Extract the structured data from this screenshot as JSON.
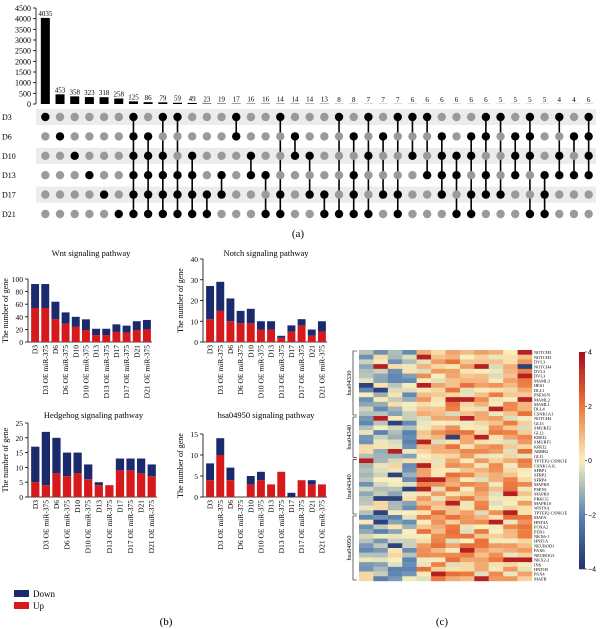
{
  "panel_labels": {
    "a": "(a)",
    "b": "(b)",
    "c": "(c)"
  },
  "colors": {
    "down": "#1a2a6c",
    "up": "#d7191c",
    "upset_bar": "#000000",
    "dot_off": "#9a9a9a",
    "dot_on": "#000000",
    "band": "#ececec"
  },
  "chart_data": [
    {
      "type": "upset",
      "sets": [
        "D3",
        "D6",
        "D10",
        "D13",
        "D17",
        "D21"
      ],
      "yticks": [
        "0",
        "500",
        "1000",
        "1500",
        "2000",
        "2500",
        "3000",
        "3500",
        "4000",
        "4500"
      ],
      "values": [
        4035,
        453,
        358,
        323,
        318,
        258,
        125,
        86,
        79,
        59,
        49,
        23,
        19,
        17,
        16,
        16,
        14,
        14,
        14,
        13,
        8,
        8,
        7,
        7,
        7,
        6,
        6,
        6,
        6,
        6,
        6,
        5,
        5,
        5,
        5,
        4,
        4,
        6
      ],
      "value_labels": [
        "4035",
        "453",
        "358",
        "323",
        "318",
        "258",
        "125",
        "86",
        "79",
        "59",
        "49",
        "23",
        "19",
        "17",
        "16",
        "16",
        "14",
        "14",
        "14",
        "13",
        "8",
        "8",
        "7",
        "7",
        "7",
        "6",
        "6",
        "6",
        "6",
        "6",
        "6",
        "5",
        "5",
        "5",
        "5",
        "4",
        "4",
        "6"
      ],
      "membership": [
        [
          0
        ],
        [
          1
        ],
        [
          2
        ],
        [
          3
        ],
        [
          4
        ],
        [
          5
        ],
        [
          0,
          1,
          2,
          3,
          4,
          5
        ],
        [
          1,
          2,
          3,
          4,
          5
        ],
        [
          0,
          2,
          3,
          4,
          5
        ],
        [
          0,
          3,
          4,
          5
        ],
        [
          2,
          3,
          4,
          5
        ],
        [
          4,
          5
        ],
        [
          3,
          4
        ],
        [
          0,
          1
        ],
        [
          2,
          3
        ],
        [
          3,
          5
        ],
        [
          0,
          4,
          5
        ],
        [
          1,
          2
        ],
        [
          2,
          4
        ],
        [
          4,
          5
        ],
        [
          0,
          5
        ],
        [
          1,
          3,
          4,
          5
        ],
        [
          0,
          2,
          5
        ],
        [
          1,
          4
        ],
        [
          0,
          4,
          5
        ],
        [
          0,
          2
        ],
        [
          0,
          3
        ],
        [
          1,
          2,
          3,
          4
        ],
        [
          2,
          3,
          5
        ],
        [
          1,
          2,
          4,
          5
        ],
        [
          0,
          1,
          3,
          4
        ],
        [
          0,
          4
        ],
        [
          1,
          2,
          3
        ],
        [
          0,
          1,
          2,
          5
        ],
        [
          3,
          4,
          5
        ],
        [
          0,
          2,
          3
        ],
        [
          1,
          3
        ],
        [
          0,
          1,
          2,
          3
        ]
      ]
    },
    {
      "type": "bar",
      "title": "Wnt signaling pathway",
      "ylabel": "The number of gene",
      "yticks": [
        "0",
        "20",
        "40",
        "60",
        "80",
        "100"
      ],
      "ylim": [
        0,
        100
      ],
      "categories": [
        "D3",
        "D3 OE miR-375",
        "D6",
        "D6 OE miR-375",
        "D10",
        "D10 OE miR-375",
        "D13",
        "D13 OE miR-375",
        "D17",
        "D17 OE miR-375",
        "D21",
        "D21 OE miR-375"
      ],
      "series": [
        {
          "name": "Down",
          "values": [
            38,
            38,
            28,
            18,
            16,
            17,
            10,
            10,
            12,
            11,
            14,
            15
          ]
        },
        {
          "name": "Up",
          "values": [
            54,
            54,
            36,
            29,
            24,
            19,
            11,
            11,
            16,
            15,
            19,
            20
          ]
        }
      ]
    },
    {
      "type": "bar",
      "title": "Notch signaling pathway",
      "ylabel": "The number of gene",
      "yticks": [
        "0",
        "10",
        "20",
        "30",
        "40"
      ],
      "ylim": [
        0,
        40
      ],
      "categories": [
        "D3",
        "D3 OE miR-375",
        "D6",
        "D6 OE miR-375",
        "D10",
        "D10 OE miR-375",
        "D13",
        "D13 OE miR-375",
        "D17",
        "D17 OE miR-375",
        "D21",
        "D21 OE miR-375"
      ],
      "series": [
        {
          "name": "Down",
          "values": [
            16,
            14,
            11,
            6,
            7,
            4,
            4,
            1,
            3,
            3,
            3,
            5
          ]
        },
        {
          "name": "Up",
          "values": [
            11,
            15,
            10,
            9,
            9,
            6,
            6,
            2,
            5,
            8,
            3,
            5
          ]
        }
      ]
    },
    {
      "type": "bar",
      "title": "Hedgehog signaling pathway",
      "ylabel": "The number of gene",
      "yticks": [
        "0",
        "5",
        "10",
        "15",
        "20",
        "25"
      ],
      "ylim": [
        0,
        25
      ],
      "categories": [
        "D3",
        "D3 OE miR-375",
        "D6",
        "D6 OE miR-375",
        "D10",
        "D10 OE miR-375",
        "D13",
        "D13 OE miR-375",
        "D17",
        "D17 OE miR-375",
        "D21",
        "D21 OE miR-375"
      ],
      "series": [
        {
          "name": "Down",
          "values": [
            12,
            18,
            12,
            8,
            7,
            5,
            1,
            0,
            4,
            4,
            5,
            4
          ]
        },
        {
          "name": "Up",
          "values": [
            5,
            4,
            8,
            7,
            8,
            6,
            4,
            4,
            9,
            9,
            8,
            7
          ]
        }
      ]
    },
    {
      "type": "bar",
      "title": "hsa04950 signaling pathway",
      "ylabel": "The number of gene",
      "yticks": [
        "0",
        "5",
        "10",
        "15"
      ],
      "ylim": [
        0,
        15
      ],
      "categories": [
        "D3",
        "D3 OE miR-375",
        "D6",
        "D6 OE miR-375",
        "D10",
        "D10 OE miR-375",
        "D13",
        "D13 OE miR-375",
        "D17",
        "D17 OE miR-375",
        "D21",
        "D21 OE miR-375"
      ],
      "series": [
        {
          "name": "Down",
          "values": [
            4,
            4,
            3,
            0,
            2,
            2,
            0,
            0,
            1,
            0,
            1,
            0
          ]
        },
        {
          "name": "Up",
          "values": [
            4,
            10,
            4,
            0,
            3,
            4,
            3,
            6,
            0,
            4,
            3,
            3
          ]
        }
      ]
    },
    {
      "type": "heatmap",
      "legend": [
        "Down",
        "Up"
      ],
      "colorbar_ticks": [
        "4",
        "2",
        "0",
        "−2",
        "−4"
      ],
      "colorbar_range": [
        -4,
        4
      ],
      "groups": [
        {
          "label": "hsa04330",
          "rows": 14
        },
        {
          "label": "hsa04340",
          "rows": 9
        },
        {
          "label": "hsa04340",
          "rows": 12
        },
        {
          "label": "hsa04950",
          "rows": 14
        }
      ],
      "row_labels": [
        "NOTCH3",
        "NOTCH3",
        "DVL3",
        "NOTCH4",
        "DVL3",
        "DVL3",
        "MAML3",
        "HES1",
        "DLL1",
        "PSEN1N",
        "MAML2",
        "MAML1",
        "DLL4",
        "CSNK1A1",
        "NOTCH4",
        "GLI3",
        "SMURF2",
        "GLI2",
        "KREI2",
        "SMURF1",
        "KREI2",
        "ARRB2",
        "GLI1",
        "TPTEP2-CSNK1E",
        "CSNK1A1L",
        "SFRP1",
        "SFRP2",
        "SFRP4",
        "MAPK8",
        "PSEN1",
        "MAPK9",
        "PRKCG",
        "MAPK10",
        "WNT9A",
        "TPTEP2-CSNK1E",
        "MAFA",
        "HNF4A",
        "FOXA2",
        "PDX1",
        "NKX6-1",
        "HNF1A",
        "NEUROD1",
        "PAX6",
        "NEUROG3",
        "NKX2-2",
        "INS",
        "HNF1B",
        "PAX4",
        "MAFB"
      ],
      "columns": 12
    }
  ]
}
